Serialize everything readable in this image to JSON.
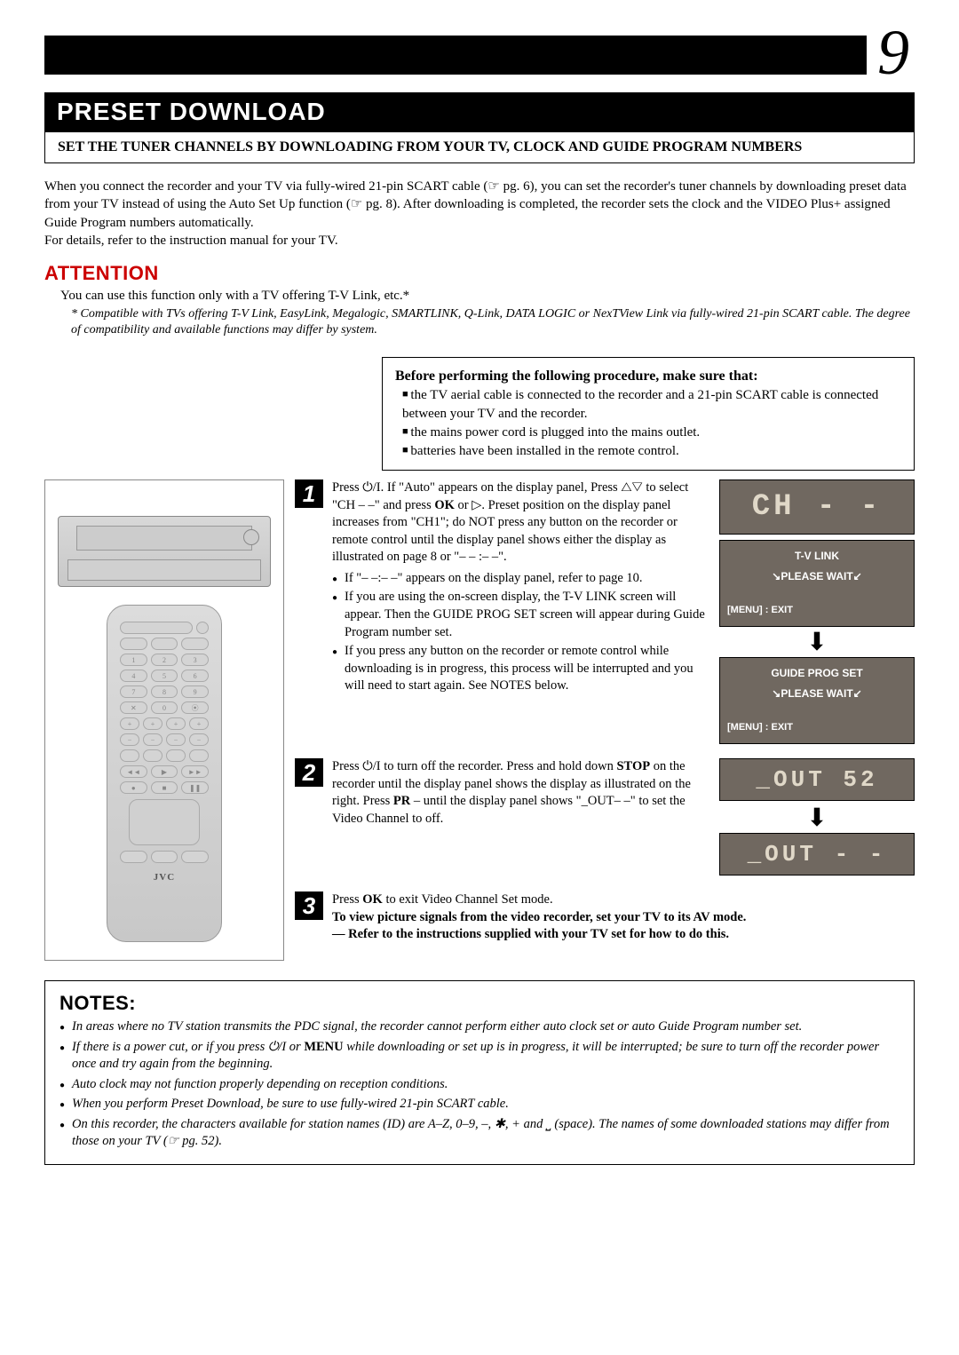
{
  "page_number": "9",
  "title": "PRESET DOWNLOAD",
  "subtitle": "Set the tuner channels by downloading from your TV, clock and Guide Program numbers",
  "intro": "When you connect the recorder and your TV via fully-wired 21-pin SCART cable (☞ pg. 6), you can set the recorder's tuner channels by downloading preset data from your TV instead of using the Auto Set Up function (☞ pg. 8). After downloading is completed, the recorder sets the clock and the VIDEO Plus+ assigned Guide Program numbers automatically.\nFor details, refer to the instruction manual for your TV.",
  "attention": {
    "heading": "ATTENTION",
    "body": "You can use this function only with a TV offering T-V Link, etc.*",
    "note": "* Compatible with TVs offering T-V Link, EasyLink, Megalogic, SMARTLINK, Q-Link, DATA LOGIC or NexTView Link via fully-wired 21-pin SCART cable. The degree of compatibility and available functions may differ by system."
  },
  "before": {
    "heading": "Before performing the following procedure, make sure that:",
    "items": [
      "the TV aerial cable is connected to the recorder and a 21-pin SCART cable is connected between your TV and the recorder.",
      "the mains power cord is plugged into the mains outlet.",
      "batteries have been installed in the remote control."
    ]
  },
  "steps": [
    {
      "num": "1",
      "text_html": "Press ⏻/I. If \"Auto\" appears on the display panel, Press △▽ to select \"CH – –\" and press <b>OK</b> or ▷. Preset position on the display panel increases from \"CH1\"; do NOT press any button on the recorder or remote control until the display panel shows either the display as illustrated on page 8 or \"– – :– –\".",
      "bullets": [
        "If \"– –:– –\" appears on the display panel, refer to page 10.",
        "If you are using the on-screen display, the T-V LINK screen will appear. Then the GUIDE PROG SET screen will appear during Guide Program number set.",
        "If you press any button on the recorder or remote control while downloading is in progress, this process will be interrupted and you will need to start again. See NOTES below."
      ]
    },
    {
      "num": "2",
      "text_html": "Press ⏻/I to turn off the recorder. Press and hold down <b>STOP</b> on the recorder until the display panel shows the display as illustrated on the right. Press <b>PR</b> – until the display panel shows \"_OUT– –\" to set the Video Channel to off."
    },
    {
      "num": "3",
      "text_html": "Press <b>OK</b> to exit Video Channel Set mode.<br><b>To view picture signals from the video recorder, set your TV to its AV mode.<br>— Refer to the instructions supplied with your TV set for how to do this.</b>"
    }
  ],
  "displays": {
    "lcd_ch": "CH - -",
    "osd1_line1": "T-V LINK",
    "osd1_line2": "PLEASE WAIT",
    "osd_menu": "[MENU] : EXIT",
    "osd2_line1": "GUIDE PROG SET",
    "osd2_line2": "PLEASE WAIT",
    "lcd_out1": "_OUT 52",
    "lcd_out2": "_OUT - -"
  },
  "remote_logo": "JVC",
  "notes": {
    "heading": "NOTES:",
    "items": [
      "In areas where no TV station transmits the PDC signal, the recorder cannot perform either auto clock set or auto Guide Program number set.",
      "If there is a power cut, or if you press ⏻/I or MENU while downloading or set up is in progress, it will be interrupted; be sure to turn off the recorder power once and try again from the beginning.",
      "Auto clock may not function properly depending on reception conditions.",
      "When you perform Preset Download, be sure to use fully-wired 21-pin SCART cable.",
      "On this recorder, the characters available for station names (ID) are A–Z, 0–9, –, ✱, + and ⎵ (space). The names of some downloaded stations may differ from those on your TV (☞ pg. 52)."
    ]
  },
  "colors": {
    "attention_red": "#cc0000",
    "lcd_bg": "#706860",
    "lcd_fg": "#e0d8c8"
  }
}
